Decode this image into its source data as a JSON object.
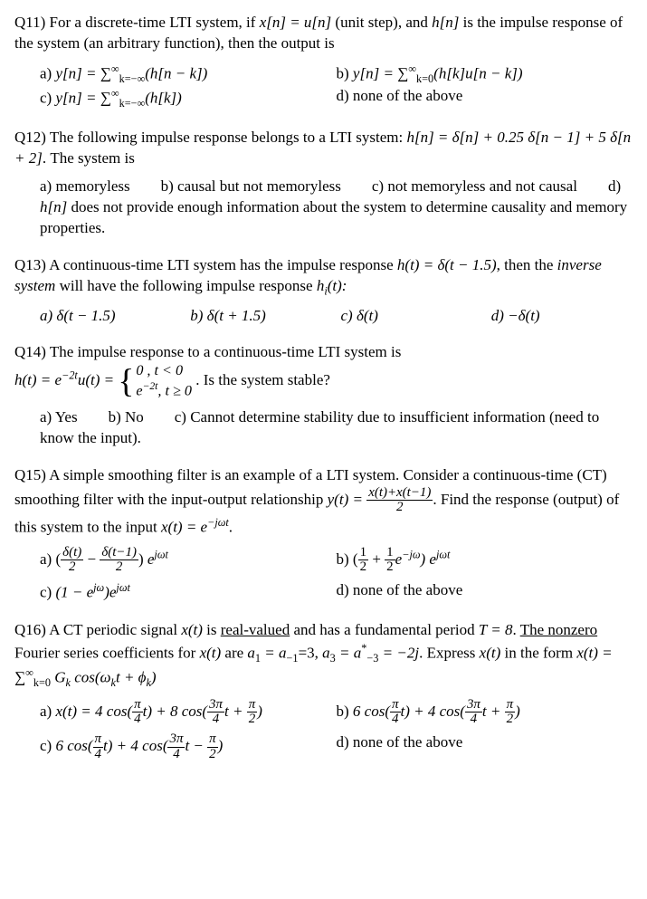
{
  "q11": {
    "stem_a": "Q11)  For a discrete-time LTI system, if ",
    "math1_pre": "x[n] = u[n]",
    "stem_b": " (unit step), and ",
    "math2": "h[n]",
    "stem_c": " is the impulse response of the system (an arbitrary function), then the output is",
    "a_label": "a)  ",
    "a_text_pre": "y[n] = ∑",
    "a_sub": "k=−∞",
    "a_sup": "∞",
    "a_text_post": "(h[n − k])",
    "b_label": "b) ",
    "b_text_pre": "y[n] = ∑",
    "b_sub": "k=0",
    "b_sup": "∞",
    "b_text_post": "(h[k]u[n − k])",
    "c_label": "c) ",
    "c_text_pre": "y[n] = ∑",
    "c_sub": "k=−∞",
    "c_sup": "∞",
    "c_text_post": "(h[k])",
    "d_label": "d) ",
    "d_text": "none of the above"
  },
  "q12": {
    "stem_a": "Q12)  The following impulse response belongs to a LTI system: ",
    "math": "h[n] = δ[n] + 0.25 δ[n − 1] + 5 δ[n + 2]",
    "stem_b": ". The system is",
    "a": "a)  memoryless",
    "b": "b) causal but not memoryless",
    "c": "c) not memoryless and not causal",
    "d_pre": "d) ",
    "d_math": "h[n]",
    "d_post": " does not provide enough information about the system to determine causality and memory properties."
  },
  "q13": {
    "stem_a": "Q13)  A continuous-time LTI system has the impulse response ",
    "math1": "h(t) = δ(t − 1.5)",
    "stem_b": ", then the ",
    "inv": "inverse system",
    "stem_c": " will have the following impulse response ",
    "hi": "h",
    "hi_sub": "i",
    "hi_post": "(t):",
    "a": "a)  δ(t − 1.5)",
    "b": "b) δ(t + 1.5)",
    "c": "c) δ(t)",
    "d": "d) −δ(t)"
  },
  "q14": {
    "stem": "Q14)  The impulse response to a continuous-time LTI system is",
    "lhs_pre": "h(t) = e",
    "lhs_sup": "−2t",
    "lhs_post": "u(t) = ",
    "case1": "0 , t < 0",
    "case2_pre": "e",
    "case2_sup": "−2t",
    "case2_post": ", t ≥ 0",
    "tail": ". Is the system stable?",
    "a": "a)  Yes",
    "b": "b) No",
    "c": "c) Cannot determine stability due to insufficient information (need to know the input)."
  },
  "q15": {
    "stem_a": "Q15)  A simple smoothing filter is an example of a LTI system. Consider a continuous-time (CT) smoothing filter with the input-output relationship ",
    "y_eq": "y(t) = ",
    "frac_num": "x(t)+x(t−1)",
    "frac_den": "2",
    "stem_b": ". Find the response (output) of this system to the input ",
    "x_eq_pre": "x(t) = e",
    "x_eq_sup": "−jωt",
    "stem_c": ".",
    "a_label": "a)  ",
    "a_f1n": "δ(t)",
    "a_f1d": "2",
    "a_minus": " − ",
    "a_f2n": "δ(t−1)",
    "a_f2d": "2",
    "a_close_pre": " e",
    "a_close_sup": "jωt",
    "b_label": "b) ",
    "b_open": "(",
    "b_f1n": "1",
    "b_f1d": "2",
    "b_plus": " + ",
    "b_f2n": "1",
    "b_f2d": "2",
    "b_exp_pre": "e",
    "b_exp_sup": "−jω",
    "b_close_pre": ") e",
    "b_close_sup": "jωt",
    "c_label": "c) ",
    "c_pre": "(1 − e",
    "c_sup1": "jω",
    "c_mid": ")e",
    "c_sup2": "jωt",
    "d_label": "d) ",
    "d_text": "none of the above"
  },
  "q16": {
    "stem_a": "Q16)  A CT periodic signal ",
    "xt": "x(t)",
    "stem_b": " is ",
    "rv": "real-valued",
    "stem_c": " and has a fundamental period ",
    "T": "T = 8",
    "stem_d": ". ",
    "nz": "The nonzero",
    "stem_e": " Fourier series coefficients for ",
    "stem_f": " are ",
    "coef1_a": "a",
    "coef1_s": "1",
    "coef1_eq": " = a",
    "coef1_s2": "−1",
    "coef1_v": "=3, ",
    "coef3_a": "a",
    "coef3_s": "3",
    "coef3_eq": " = a",
    "coef3_star": "*",
    "coef3_s2": "−3",
    "coef3_v": " = −2j",
    "stem_g": ". Express ",
    "stem_h": " in the form ",
    "form_pre": "x(t) = ∑",
    "form_sub": "k=0",
    "form_sup": "∞",
    "form_mid": " G",
    "form_Gsub": "k",
    "form_cos": " cos(ω",
    "form_wsub": "k",
    "form_post": "t + ϕ",
    "form_psub": "k",
    "form_end": ")",
    "a_label": "a)  ",
    "a_text": "x(t) = 4 cos(",
    "a_f1n": "π",
    "a_f1d": "4",
    "a_mid1": "t) + 8 cos(",
    "a_f2n": "3π",
    "a_f2d": "4",
    "a_mid2": "t + ",
    "a_f3n": "π",
    "a_f3d": "2",
    "a_end": ")",
    "b_label": "b) ",
    "b_text": "6 cos(",
    "b_f1n": "π",
    "b_f1d": "4",
    "b_mid1": "t) + 4 cos(",
    "b_f2n": "3π",
    "b_f2d": "4",
    "b_mid2": "t + ",
    "b_f3n": "π",
    "b_f3d": "2",
    "b_end": ")",
    "c_label": "c) ",
    "c_text": "6 cos(",
    "c_f1n": "π",
    "c_f1d": "4",
    "c_mid1": "t) + 4 cos(",
    "c_f2n": "3π",
    "c_f2d": "4",
    "c_mid2": "t − ",
    "c_f3n": "π",
    "c_f3d": "2",
    "c_end": ")",
    "d_label": "d) ",
    "d_text": "none of the above"
  }
}
